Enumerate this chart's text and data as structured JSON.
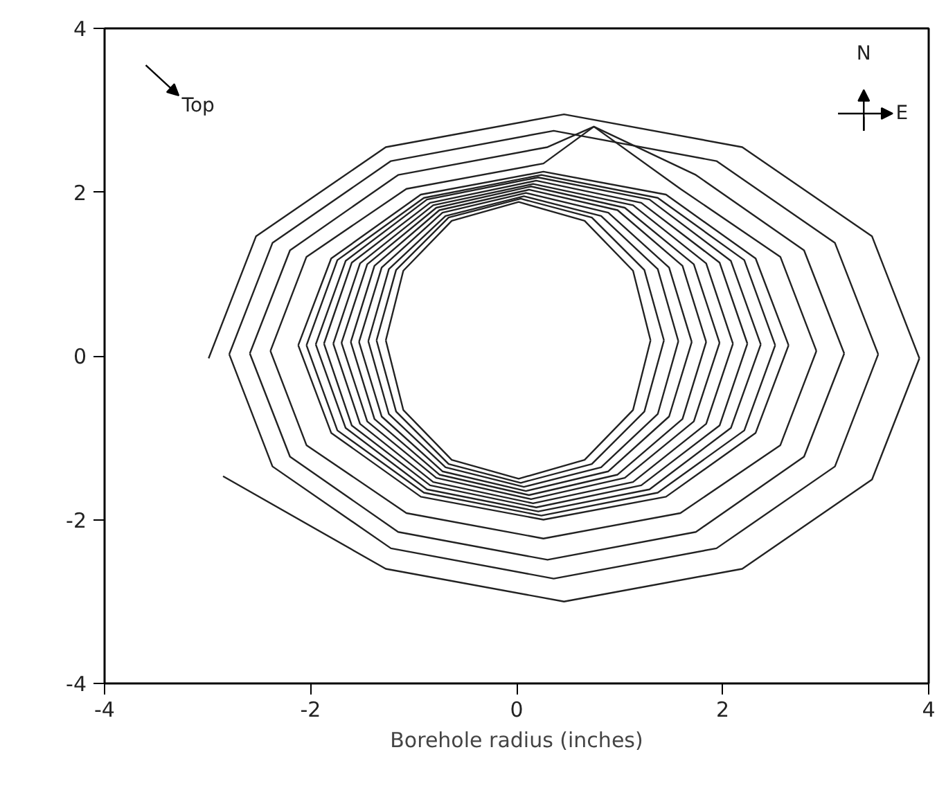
{
  "chart_data": {
    "type": "line",
    "xlabel": "Borehole radius (inches)",
    "xlim": [
      -4,
      4
    ],
    "ylim": [
      -4,
      4
    ],
    "xticks": [
      -4,
      -2,
      0,
      2,
      4
    ],
    "yticks": [
      -4,
      -2,
      0,
      2,
      4
    ],
    "grid": false,
    "marker": "none",
    "line_style": "solid",
    "annotations": [
      "Top",
      "N",
      "E"
    ],
    "series": [
      {
        "color": "#222222",
        "x": [
          1.3,
          1.13,
          0.66,
          0.02,
          -0.63,
          -1.1,
          -1.27
        ],
        "values": [
          0.19,
          1.04,
          1.65,
          1.88,
          1.65,
          1.04,
          0.19
        ]
      },
      {
        "color": "#222222",
        "x": [
          -1.27,
          -1.1,
          -0.63,
          0.02,
          0.66,
          1.13,
          1.3
        ],
        "values": [
          0.19,
          -0.66,
          -1.27,
          -1.5,
          -1.27,
          -0.66,
          0.19
        ]
      },
      {
        "color": "#222222",
        "x": [
          1.43,
          1.24,
          0.73,
          0.04,
          -0.66,
          -1.17,
          -1.36
        ],
        "values": [
          0.19,
          1.05,
          1.69,
          1.92,
          1.69,
          1.05,
          0.19
        ]
      },
      {
        "color": "#222222",
        "x": [
          -1.36,
          -1.17,
          -0.66,
          0.04,
          0.73,
          1.24,
          1.43
        ],
        "values": [
          0.19,
          -0.68,
          -1.32,
          -1.55,
          -1.32,
          -0.68,
          0.19
        ]
      },
      {
        "color": "#222222",
        "x": [
          1.57,
          1.37,
          0.82,
          0.07,
          -0.69,
          -1.24,
          -1.44
        ],
        "values": [
          0.18,
          1.06,
          1.71,
          1.95,
          1.71,
          1.06,
          0.18
        ]
      },
      {
        "color": "#222222",
        "x": [
          -1.44,
          -1.24,
          -0.69,
          0.07,
          0.82,
          1.37,
          1.57
        ],
        "values": [
          0.18,
          -0.71,
          -1.36,
          -1.6,
          -1.36,
          -0.71,
          0.18
        ]
      },
      {
        "color": "#222222",
        "x": [
          1.7,
          1.48,
          0.89,
          0.09,
          -0.72,
          -1.31,
          -1.53
        ],
        "values": [
          0.17,
          1.08,
          1.75,
          1.99,
          1.75,
          1.08,
          0.17
        ]
      },
      {
        "color": "#222222",
        "x": [
          -1.53,
          -1.31,
          -0.72,
          0.09,
          0.89,
          1.48,
          1.7
        ],
        "values": [
          0.17,
          -0.74,
          -1.41,
          -1.65,
          -1.41,
          -0.74,
          0.17
        ]
      },
      {
        "color": "#222222",
        "x": [
          1.84,
          1.61,
          0.98,
          0.12,
          -0.75,
          -1.38,
          -1.61
        ],
        "values": [
          0.17,
          1.1,
          1.78,
          2.03,
          1.78,
          1.1,
          0.17
        ]
      },
      {
        "color": "#222222",
        "x": [
          -1.61,
          -1.38,
          -0.75,
          0.12,
          0.98,
          1.61,
          1.84
        ],
        "values": [
          0.17,
          -0.77,
          -1.45,
          -1.7,
          -1.45,
          -0.77,
          0.17
        ]
      },
      {
        "color": "#222222",
        "x": [
          1.97,
          1.72,
          1.05,
          0.14,
          -0.78,
          -1.45,
          -1.7
        ],
        "values": [
          0.16,
          1.12,
          1.81,
          2.07,
          1.81,
          1.12,
          0.16
        ]
      },
      {
        "color": "#222222",
        "x": [
          -1.7,
          -1.45,
          -0.78,
          0.14,
          1.05,
          1.72,
          1.97
        ],
        "values": [
          0.16,
          -0.8,
          -1.49,
          -1.75,
          -1.49,
          -0.8,
          0.16
        ]
      },
      {
        "color": "#222222",
        "x": [
          2.1,
          1.84,
          1.13,
          0.16,
          -0.81,
          -1.52,
          -1.78
        ],
        "values": [
          0.15,
          1.13,
          1.84,
          2.1,
          1.84,
          1.13,
          0.15
        ]
      },
      {
        "color": "#222222",
        "x": [
          -1.78,
          -1.52,
          -0.81,
          0.16,
          1.13,
          1.84,
          2.1
        ],
        "values": [
          0.15,
          -0.83,
          -1.54,
          -1.8,
          -1.54,
          -0.83,
          0.15
        ]
      },
      {
        "color": "#222222",
        "x": [
          2.24,
          1.97,
          1.21,
          0.19,
          -0.84,
          -1.6,
          -1.87
        ],
        "values": [
          0.15,
          1.14,
          1.87,
          2.14,
          1.87,
          1.14,
          0.15
        ]
      },
      {
        "color": "#222222",
        "x": [
          -1.87,
          -1.6,
          -0.84,
          0.19,
          1.21,
          1.97,
          2.24
        ],
        "values": [
          0.15,
          -0.85,
          -1.58,
          -1.85,
          -1.58,
          -0.85,
          0.15
        ]
      },
      {
        "color": "#222222",
        "x": [
          2.37,
          2.08,
          1.29,
          0.21,
          -0.87,
          -1.66,
          -1.95
        ],
        "values": [
          0.14,
          1.16,
          1.91,
          2.18,
          1.91,
          1.16,
          0.14
        ]
      },
      {
        "color": "#222222",
        "x": [
          -1.95,
          -1.66,
          -0.87,
          0.21,
          1.29,
          2.08,
          2.37
        ],
        "values": [
          0.14,
          -0.88,
          -1.63,
          -1.9,
          -1.63,
          -0.88,
          0.14
        ]
      },
      {
        "color": "#222222",
        "x": [
          2.51,
          2.21,
          1.37,
          0.24,
          -0.9,
          -1.74,
          -2.04
        ],
        "values": [
          0.13,
          1.17,
          1.93,
          2.21,
          1.93,
          1.17,
          0.13
        ]
      },
      {
        "color": "#222222",
        "x": [
          -2.04,
          -1.74,
          -0.9,
          0.24,
          1.37,
          2.21,
          2.51
        ],
        "values": [
          0.13,
          -0.91,
          -1.67,
          -1.95,
          -1.67,
          -0.91,
          0.13
        ]
      },
      {
        "color": "#222222",
        "x": [
          2.64,
          2.32,
          1.45,
          0.26,
          -0.93,
          -1.8,
          -2.12
        ],
        "values": [
          0.13,
          1.19,
          1.97,
          2.25,
          1.97,
          1.19,
          0.13
        ]
      },
      {
        "color": "#222222",
        "x": [
          -2.12,
          -1.8,
          -0.93,
          0.26,
          1.45,
          2.32,
          2.64
        ],
        "values": [
          0.13,
          -0.94,
          -1.72,
          -2.0,
          -1.72,
          -0.94,
          0.13
        ]
      },
      {
        "color": "#222222",
        "x": [
          2.91,
          2.56,
          1.59,
          0.75,
          0.26,
          -1.07,
          -2.04,
          -2.39
        ],
        "values": [
          0.06,
          1.21,
          2.04,
          2.8,
          2.35,
          2.04,
          1.21,
          0.06
        ]
      },
      {
        "color": "#222222",
        "x": [
          -2.39,
          -2.04,
          -1.07,
          0.26,
          1.59,
          2.56,
          2.91
        ],
        "values": [
          0.06,
          -1.09,
          -1.92,
          -2.23,
          -1.92,
          -1.09,
          0.06
        ]
      },
      {
        "color": "#222222",
        "x": [
          3.18,
          2.79,
          1.74,
          0.75,
          0.3,
          -1.15,
          -2.2,
          -2.59
        ],
        "values": [
          0.03,
          1.29,
          2.21,
          2.8,
          2.55,
          2.21,
          1.29,
          0.03
        ]
      },
      {
        "color": "#222222",
        "x": [
          -2.59,
          -2.2,
          -1.15,
          0.3,
          1.74,
          2.79,
          3.18
        ],
        "values": [
          0.03,
          -1.23,
          -2.15,
          -2.49,
          -2.15,
          -1.23,
          0.03
        ]
      },
      {
        "color": "#222222",
        "x": [
          3.51,
          3.09,
          1.94,
          0.36,
          -1.22,
          -2.37,
          -2.79
        ],
        "values": [
          0.02,
          1.38,
          2.38,
          2.75,
          2.38,
          1.38,
          0.02
        ]
      },
      {
        "color": "#222222",
        "x": [
          -2.79,
          -2.37,
          -1.22,
          0.36,
          1.94,
          3.09,
          3.51
        ],
        "values": [
          0.02,
          -1.35,
          -2.35,
          -2.72,
          -2.35,
          -1.35,
          0.02
        ]
      },
      {
        "color": "#222222",
        "x": [
          -2.85,
          -1.27,
          0.46,
          2.19,
          3.45,
          3.91
        ],
        "values": [
          -1.47,
          -2.6,
          -3.0,
          -2.6,
          -1.51,
          -0.03
        ]
      },
      {
        "color": "#222222",
        "x": [
          3.91,
          3.45,
          2.19,
          0.46,
          -1.27,
          -2.53,
          -2.99
        ],
        "values": [
          -0.03,
          1.46,
          2.55,
          2.95,
          2.55,
          1.46,
          -0.03
        ]
      }
    ]
  }
}
